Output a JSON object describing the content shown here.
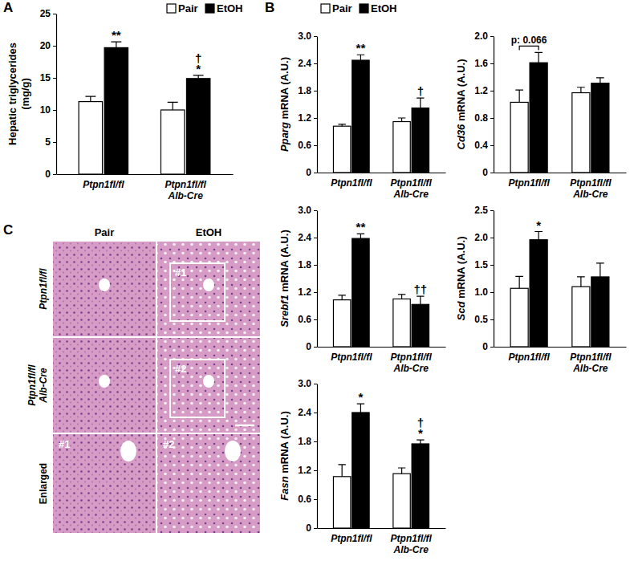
{
  "chart_data": [
    {
      "type": "bar",
      "y_label": "Hepatic triglycerides (mg/g)",
      "categories": [
        "Ptpn1fl/fl",
        "Ptpn1fl/fl Alb-Cre"
      ],
      "series": [
        {
          "name": "Pair",
          "color": "#ffffff",
          "values": [
            11.3,
            10.0
          ],
          "errors": [
            0.8,
            1.2
          ]
        },
        {
          "name": "EtOH",
          "color": "#000000",
          "values": [
            19.7,
            14.9
          ],
          "errors": [
            0.9,
            0.5
          ]
        }
      ],
      "ylim": [
        0,
        25
      ],
      "yticks": [
        0,
        5,
        10,
        15,
        20,
        25
      ],
      "legend": "top-right",
      "annotations": [
        {
          "text": "**",
          "category": 0,
          "series": 1
        },
        {
          "text": "*",
          "category": 1,
          "series": 1
        },
        {
          "text": "†",
          "category": 1,
          "series": 1
        }
      ]
    },
    {
      "type": "bar",
      "y_label": "Pparg mRNA (A.U.)",
      "categories": [
        "Ptpn1fl/fl",
        "Ptpn1fl/fl Alb-Cre"
      ],
      "series": [
        {
          "name": "Pair",
          "color": "#ffffff",
          "values": [
            1.02,
            1.12
          ],
          "errors": [
            0.04,
            0.08
          ]
        },
        {
          "name": "EtOH",
          "color": "#000000",
          "values": [
            2.47,
            1.42
          ],
          "errors": [
            0.12,
            0.22
          ]
        }
      ],
      "ylim": [
        0,
        3
      ],
      "yticks": [
        0,
        0.6,
        1.2,
        1.8,
        2.4,
        {
          "value": 3,
          "label": "3.0"
        }
      ],
      "legend": "top",
      "annotations": [
        {
          "text": "**",
          "category": 0,
          "series": 1
        },
        {
          "text": "†",
          "category": 1,
          "series": 1
        }
      ]
    },
    {
      "type": "bar",
      "y_label": "Cd36 mRNA (A.U.)",
      "categories": [
        "Ptpn1fl/fl",
        "Ptpn1fl/fl Alb-Cre"
      ],
      "series": [
        {
          "color": "#ffffff",
          "values": [
            1.03,
            1.17
          ],
          "errors": [
            0.18,
            0.08
          ]
        },
        {
          "color": "#000000",
          "values": [
            1.61,
            1.31
          ],
          "errors": [
            0.15,
            0.08
          ]
        }
      ],
      "ylim": [
        0,
        2
      ],
      "yticks": [
        0,
        0.4,
        0.8,
        1.2,
        1.6,
        {
          "value": 2,
          "label": "2.0"
        }
      ],
      "annotations": [
        {
          "text": "p: 0.066",
          "category": 0
        }
      ]
    },
    {
      "type": "bar",
      "y_label": "Srebf1 mRNA (A.U.)",
      "categories": [
        "Ptpn1fl/fl",
        "Ptpn1fl/fl Alb-Cre"
      ],
      "series": [
        {
          "color": "#ffffff",
          "values": [
            1.03,
            1.05
          ],
          "errors": [
            0.1,
            0.1
          ]
        },
        {
          "color": "#000000",
          "values": [
            2.38,
            0.93
          ],
          "errors": [
            0.1,
            0.18
          ]
        }
      ],
      "ylim": [
        0,
        3
      ],
      "yticks": [
        0,
        0.6,
        1.2,
        1.8,
        2.4,
        {
          "value": 3,
          "label": "3.0"
        }
      ],
      "annotations": [
        {
          "text": "**",
          "category": 0,
          "series": 1
        },
        {
          "text": "††",
          "category": 1,
          "series": 1
        }
      ]
    },
    {
      "type": "bar",
      "y_label": "Scd mRNA (A.U.)",
      "categories": [
        "Ptpn1fl/fl",
        "Ptpn1fl/fl Alb-Cre"
      ],
      "series": [
        {
          "color": "#ffffff",
          "values": [
            1.07,
            1.1
          ],
          "errors": [
            0.22,
            0.18
          ]
        },
        {
          "color": "#000000",
          "values": [
            1.96,
            1.28
          ],
          "errors": [
            0.15,
            0.25
          ]
        }
      ],
      "ylim": [
        0,
        2.5
      ],
      "yticks": [
        0,
        0.5,
        {
          "value": 1,
          "label": "1.0"
        },
        1.5,
        {
          "value": 2,
          "label": "2.0"
        },
        2.5
      ],
      "annotations": [
        {
          "text": "*",
          "category": 0,
          "series": 1
        }
      ]
    },
    {
      "type": "bar",
      "y_label": "Fasn mRNA (A.U.)",
      "categories": [
        "Ptpn1fl/fl",
        "Ptpn1fl/fl Alb-Cre"
      ],
      "series": [
        {
          "color": "#ffffff",
          "values": [
            1.07,
            1.13
          ],
          "errors": [
            0.25,
            0.12
          ]
        },
        {
          "color": "#000000",
          "values": [
            2.4,
            1.75
          ],
          "errors": [
            0.18,
            0.08
          ]
        }
      ],
      "ylim": [
        0,
        3
      ],
      "yticks": [
        0,
        0.6,
        1.2,
        1.8,
        2.4,
        {
          "value": 3,
          "label": "3.0"
        }
      ],
      "annotations": [
        {
          "text": "*",
          "category": 0,
          "series": 1
        },
        {
          "text": "*",
          "category": 1,
          "series": 1
        },
        {
          "text": "†",
          "category": 1,
          "series": 1
        }
      ]
    }
  ],
  "panel_labels": [
    "A",
    "B",
    "C"
  ],
  "panel_c": {
    "columns": [
      "Pair",
      "EtOH"
    ],
    "rows": [
      "Ptpn1fl/fl",
      "Ptpn1fl/fl Alb-Cre",
      "Enlarged"
    ],
    "insets": [
      "#1",
      "#2"
    ]
  }
}
